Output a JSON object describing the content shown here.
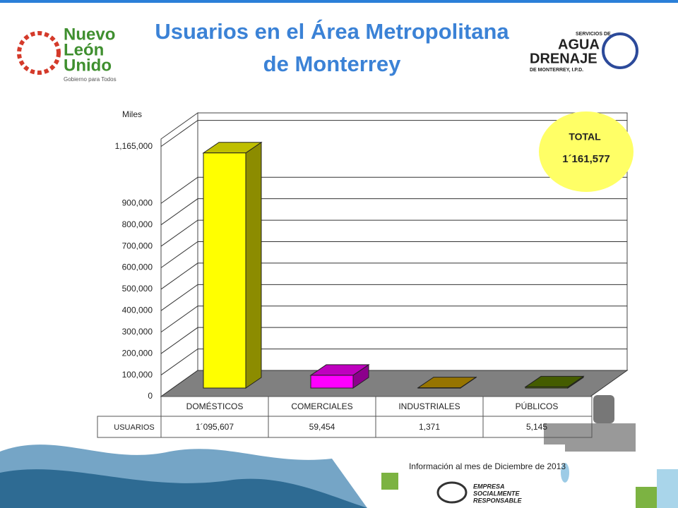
{
  "chart_data": {
    "type": "bar3d",
    "title": "Usuarios en el Área Metropolitana de Monterrey",
    "y_axis_label": "Miles",
    "categories": [
      "DOMÉSTICOS",
      "COMERCIALES",
      "INDUSTRIALES",
      "PÚBLICOS"
    ],
    "row_label": "USUARIOS",
    "values": [
      1095607,
      59454,
      1371,
      5145
    ],
    "value_labels": [
      "1´095,607",
      "59,454",
      "1,371",
      "5,145"
    ],
    "colors": [
      "#ffff00",
      "#ff00ff",
      "#c89b00",
      "#5a7a00"
    ],
    "ylim": [
      0,
      1200000
    ],
    "yticks": [
      0,
      {
        "value": 100000,
        "label": "100,000"
      },
      {
        "value": 200000,
        "label": "200,000"
      },
      {
        "value": 300000,
        "label": "300,000"
      },
      {
        "value": 400000,
        "label": "400,000"
      },
      {
        "value": 500000,
        "label": "500,000"
      },
      {
        "value": 600000,
        "label": "600,000"
      },
      {
        "value": 700000,
        "label": "700,000"
      },
      {
        "value": 800000,
        "label": "800,000"
      },
      {
        "value": 900000,
        "label": "900,000"
      },
      {
        "value": 1165000,
        "label": "1,165,000"
      }
    ],
    "grid": true,
    "total_label": "TOTAL",
    "total_value_label": "1´161,577",
    "footnote": "Información al mes de Diciembre de 2013"
  },
  "logos": {
    "left": [
      "Nuevo",
      "León",
      "Unido",
      "Gobierno para Todos"
    ],
    "right": [
      "SERVICIOS DE",
      "AGUA",
      "DRENAJE",
      "DE MONTERREY, I.P.D."
    ],
    "bottom": [
      "EMPRESA",
      "SOCIALMENTE",
      "RESPONSABLE"
    ]
  }
}
